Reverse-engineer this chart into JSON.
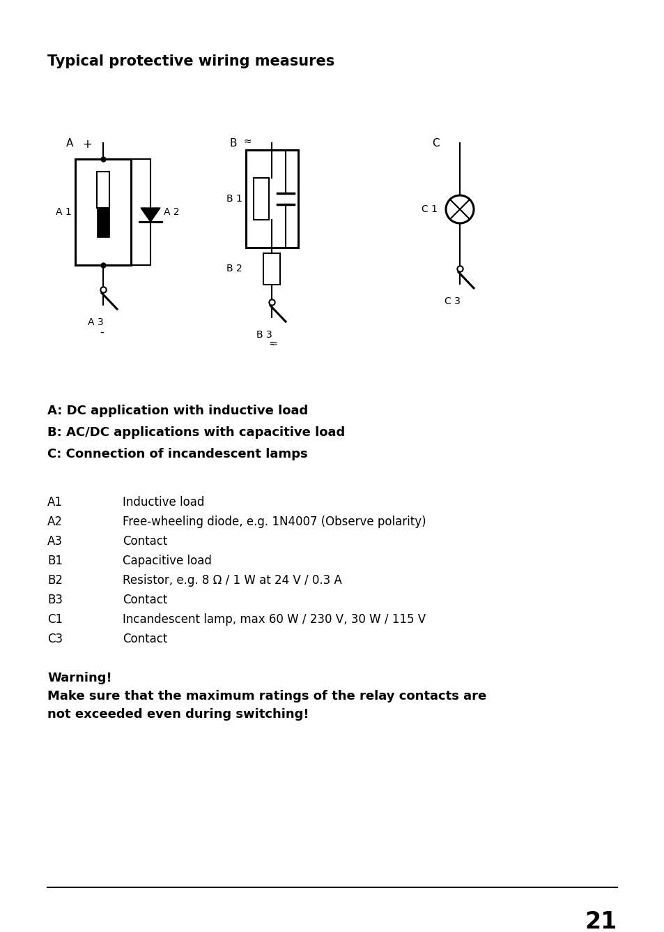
{
  "title": "Typical protective wiring measures",
  "bg_color": "#ffffff",
  "text_color": "#000000",
  "bold_lines": [
    "A: DC application with inductive load",
    "B: AC/DC applications with capacitive load",
    "C: Connection of incandescent lamps"
  ],
  "items": [
    [
      "A1",
      "Inductive load"
    ],
    [
      "A2",
      "Free-wheeling diode, e.g. 1N4007 (Observe polarity)"
    ],
    [
      "A3",
      "Contact"
    ],
    [
      "B1",
      "Capacitive load"
    ],
    [
      "B2",
      "Resistor, e.g. 8 Ω / 1 W at 24 V / 0.3 A"
    ],
    [
      "B3",
      "Contact"
    ],
    [
      "C1",
      "Incandescent lamp, max 60 W / 230 V, 30 W / 115 V"
    ],
    [
      "C3",
      "Contact"
    ]
  ],
  "warning_title": "Warning!",
  "warning_body": "Make sure that the maximum ratings of the relay contacts are\nnot exceeded even during switching!",
  "page_number": "21",
  "fig_width": 9.54,
  "fig_height": 13.36,
  "dpi": 100
}
